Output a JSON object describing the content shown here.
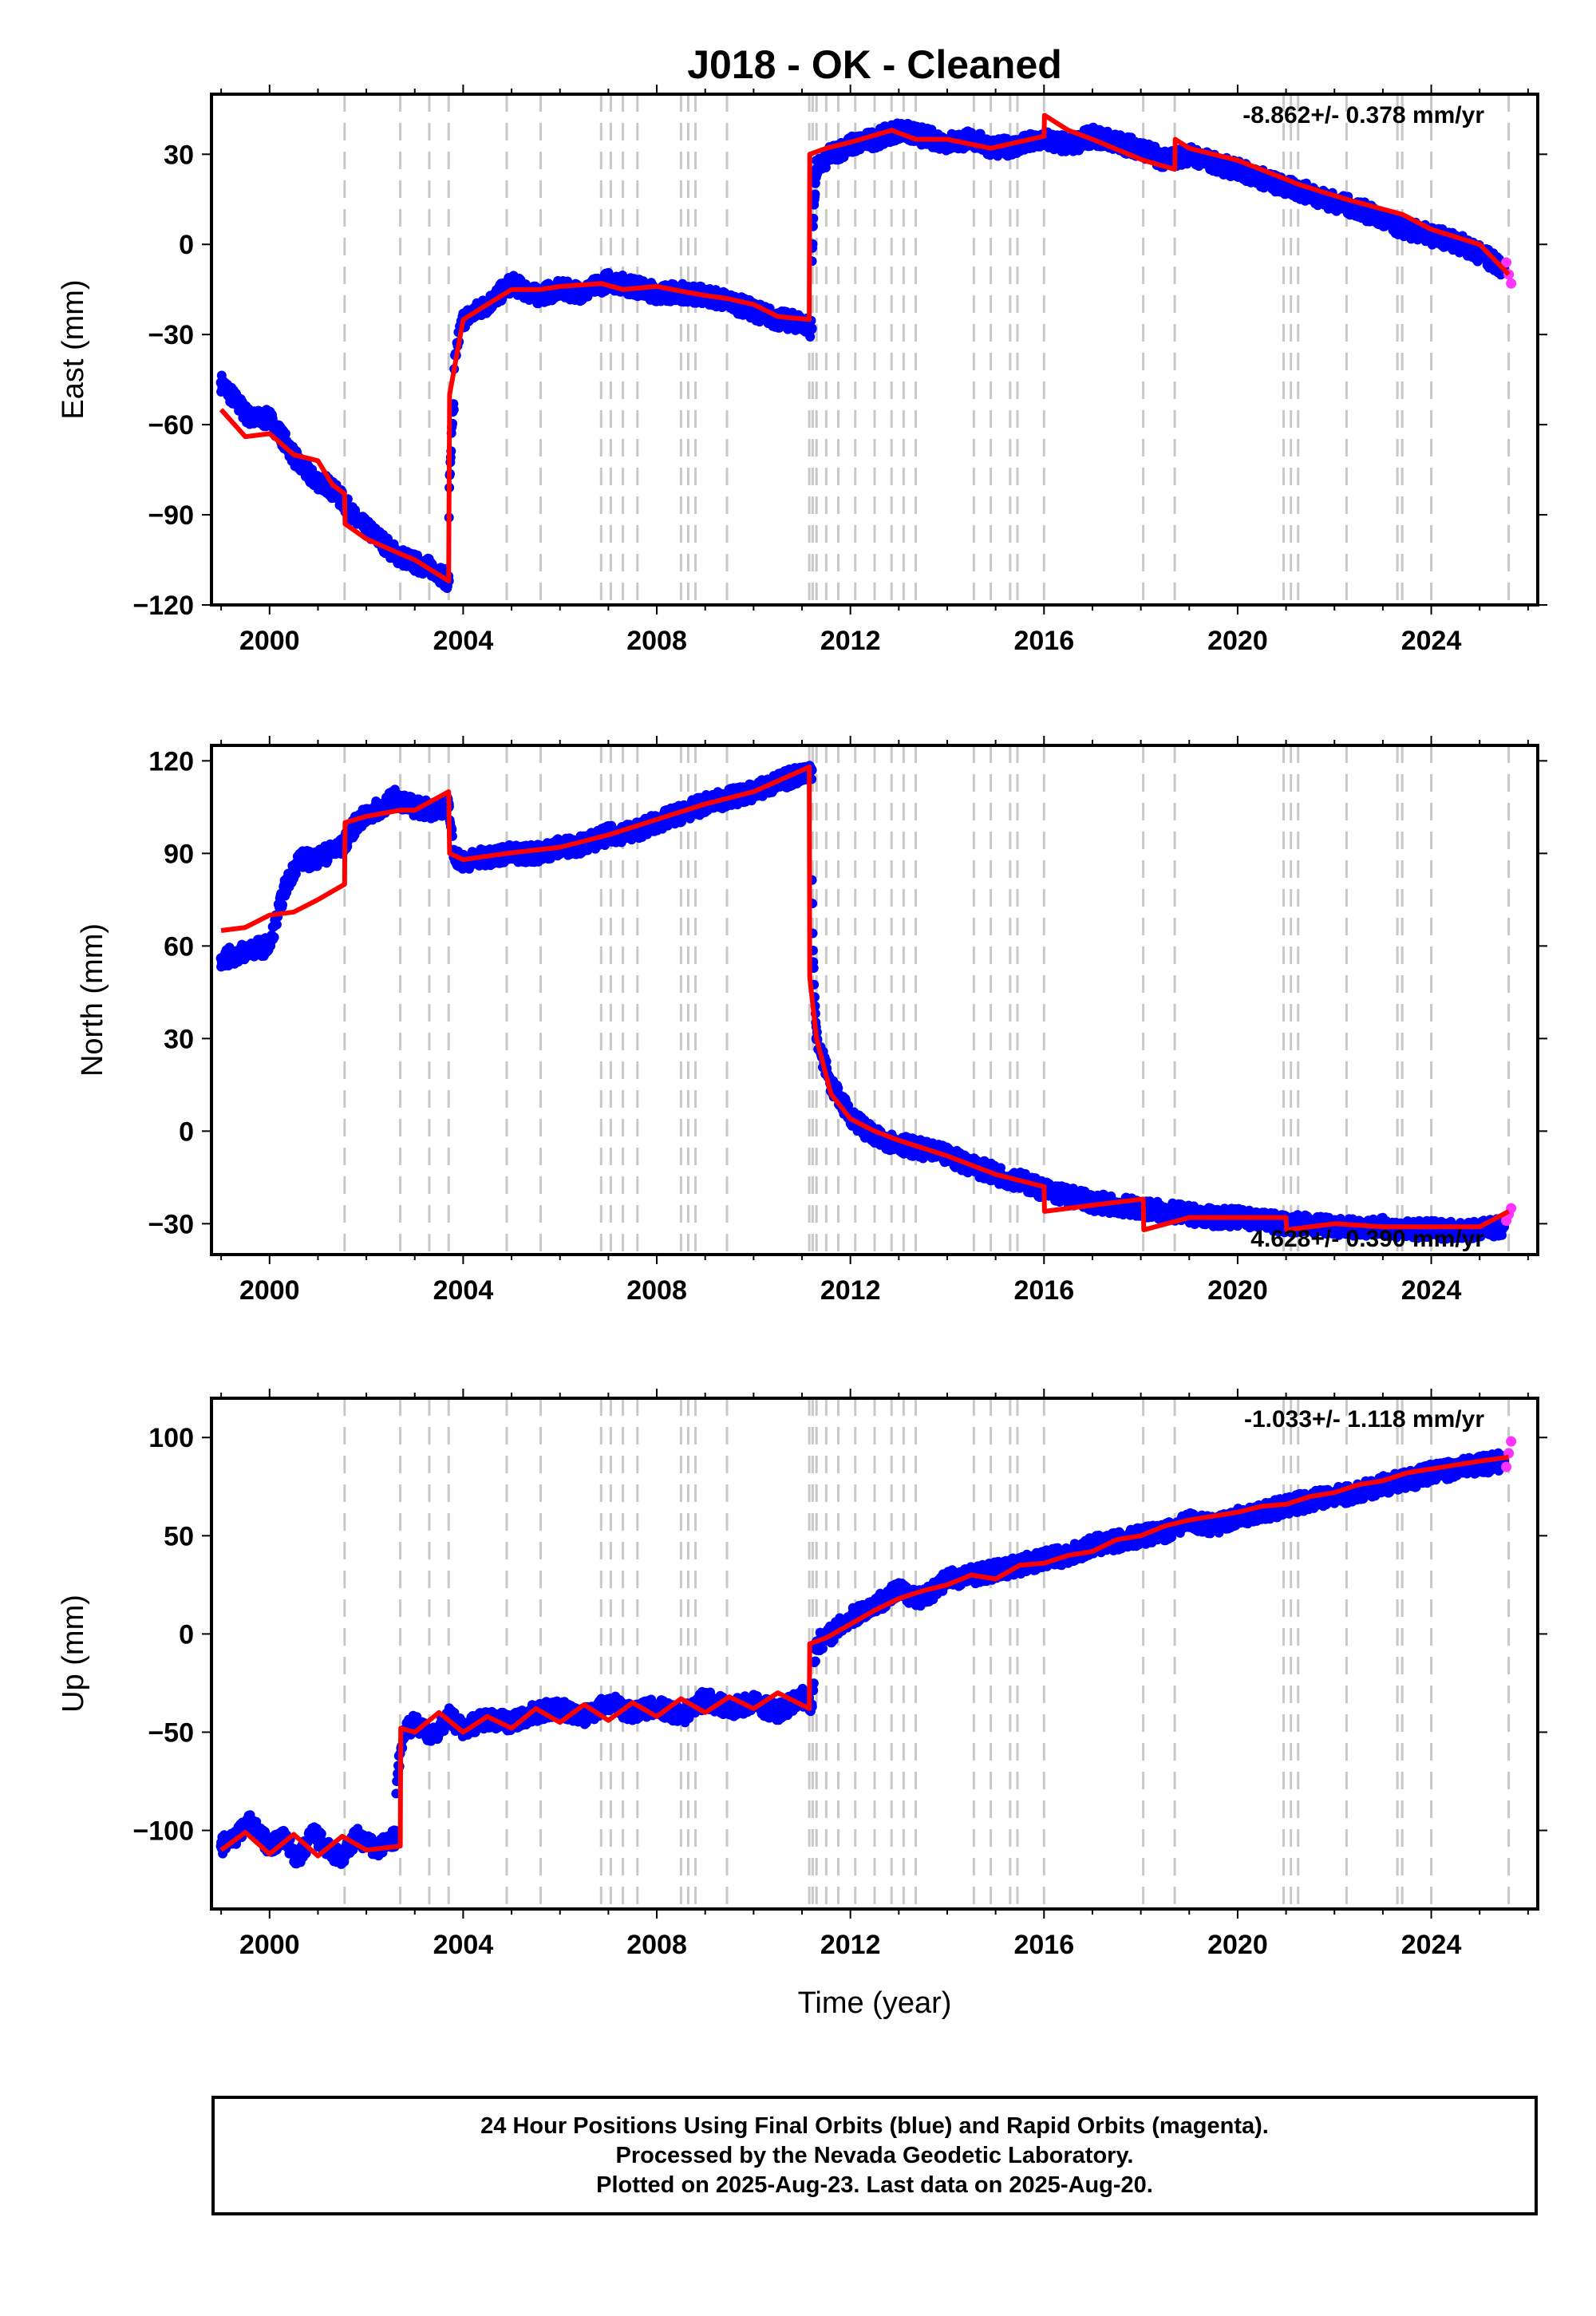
{
  "figure": {
    "title": "J018  - OK - Cleaned"
  },
  "colors": {
    "final_orbits": "#0000ff",
    "rapid_orbits": "#ff33ff",
    "model_fit": "#ff0000",
    "event_lines": "#c8c8c8",
    "frame": "#000000"
  },
  "x_axis": {
    "label": "Time (year)",
    "range": [
      1998.8,
      2026.2
    ],
    "ticks": [
      "2000",
      "2004",
      "2008",
      "2012",
      "2016",
      "2020",
      "2024"
    ]
  },
  "event_lines": [
    2001.55,
    2002.7,
    2003.3,
    2003.7,
    2004.9,
    2005.6,
    2006.85,
    2007.05,
    2007.3,
    2007.6,
    2008.5,
    2008.65,
    2008.8,
    2009.45,
    2011.15,
    2011.22,
    2011.3,
    2011.5,
    2011.75,
    2012.1,
    2012.5,
    2012.85,
    2013.1,
    2013.35,
    2014.55,
    2014.9,
    2015.3,
    2015.45,
    2016.0,
    2018.05,
    2018.7,
    2020.95,
    2021.1,
    2021.25,
    2022.25,
    2023.3,
    2023.4,
    2024.0,
    2025.6
  ],
  "footer": {
    "line1": "24 Hour Positions Using Final Orbits (blue) and Rapid Orbits (magenta).",
    "line2": "Processed by the Nevada Geodetic Laboratory.",
    "line3": "Plotted on 2025-Aug-23. Last data on 2025-Aug-20."
  },
  "chart_data": [
    {
      "type": "scatter",
      "ylabel": "East (mm)",
      "ylim": [
        -120,
        50
      ],
      "yticks": [
        "30",
        "0",
        "−30",
        "−60",
        "−90",
        "−120"
      ],
      "rate_label": "-8.862+/- 0.378 mm/yr",
      "series": [
        {
          "name": "Final Orbits (blue)",
          "x": [
            1999.0,
            1999.3,
            1999.6,
            2000.0,
            2000.3,
            2000.6,
            2000.9,
            2001.2,
            2001.5,
            2001.8,
            2002.2,
            2002.6,
            2003.0,
            2003.4,
            2003.7,
            2003.8,
            2004.0,
            2004.5,
            2005.0,
            2005.5,
            2006.0,
            2006.5,
            2007.0,
            2007.5,
            2008.0,
            2008.5,
            2009.0,
            2009.5,
            2010.0,
            2010.5,
            2011.0,
            2011.2,
            2011.3,
            2011.6,
            2012.0,
            2012.5,
            2013.0,
            2013.5,
            2014.0,
            2014.5,
            2015.0,
            2015.5,
            2016.0,
            2016.5,
            2017.0,
            2017.5,
            2018.0,
            2018.5,
            2019.0,
            2019.5,
            2020.0,
            2020.5,
            2021.0,
            2021.5,
            2022.0,
            2022.5,
            2023.0,
            2023.5,
            2024.0,
            2024.5,
            2025.0,
            2025.5
          ],
          "y": [
            -46,
            -52,
            -58,
            -58,
            -65,
            -73,
            -78,
            -80,
            -85,
            -92,
            -97,
            -103,
            -106,
            -108,
            -112,
            -55,
            -25,
            -20,
            -13,
            -17,
            -15,
            -16,
            -12,
            -14,
            -16,
            -16,
            -17,
            -19,
            -22,
            -25,
            -26,
            -28,
            25,
            30,
            33,
            35,
            38,
            36,
            34,
            35,
            32,
            33,
            35,
            33,
            36,
            34,
            32,
            28,
            30,
            27,
            25,
            22,
            19,
            17,
            14,
            12,
            8,
            5,
            3,
            1,
            -3,
            -8
          ]
        },
        {
          "name": "Rapid Orbits (magenta)",
          "x": [
            2025.55,
            2025.6,
            2025.65
          ],
          "y": [
            -6,
            -10,
            -13
          ]
        },
        {
          "name": "Model fit (red)",
          "x": [
            1999.0,
            1999.5,
            2000.0,
            2000.5,
            2001.0,
            2001.3,
            2001.55,
            2001.56,
            2002.0,
            2002.7,
            2003.0,
            2003.7,
            2003.72,
            2004.0,
            2004.5,
            2005.0,
            2005.6,
            2006.0,
            2006.85,
            2007.3,
            2008.0,
            2008.65,
            2009.0,
            2009.45,
            2010.0,
            2010.5,
            2011.15,
            2011.16,
            2011.5,
            2012.0,
            2012.85,
            2013.35,
            2014.0,
            2014.9,
            2015.45,
            2016.0,
            2016.01,
            2016.5,
            2017.0,
            2018.05,
            2018.7,
            2018.71,
            2019.0,
            2020.0,
            2020.95,
            2021.25,
            2022.25,
            2023.4,
            2024.0,
            2025.0,
            2025.6
          ],
          "y": [
            -55,
            -64,
            -63,
            -70,
            -72,
            -80,
            -83,
            -93,
            -98,
            -103,
            -105,
            -112,
            -50,
            -25,
            -20,
            -15,
            -15,
            -14,
            -13,
            -15,
            -14,
            -16,
            -17,
            -18,
            -20,
            -24,
            -25,
            30,
            32,
            34,
            38,
            35,
            35,
            32,
            34,
            36,
            43,
            38,
            35,
            28,
            25,
            35,
            32,
            28,
            22,
            20,
            15,
            10,
            5,
            0,
            -10
          ]
        }
      ]
    },
    {
      "type": "scatter",
      "ylabel": "North (mm)",
      "ylim": [
        -40,
        125
      ],
      "yticks": [
        "120",
        "90",
        "60",
        "30",
        "0",
        "−30"
      ],
      "rate_label": "4.628+/- 0.390 mm/yr",
      "series": [
        {
          "name": "Final Orbits (blue)",
          "x": [
            1999.0,
            1999.3,
            1999.6,
            2000.0,
            2000.3,
            2000.6,
            2000.9,
            2001.2,
            2001.5,
            2001.8,
            2002.2,
            2002.6,
            2003.0,
            2003.4,
            2003.7,
            2003.8,
            2004.0,
            2004.5,
            2005.0,
            2005.5,
            2006.0,
            2006.5,
            2007.0,
            2007.5,
            2008.0,
            2008.5,
            2009.0,
            2009.5,
            2010.0,
            2010.5,
            2011.0,
            2011.2,
            2011.3,
            2011.6,
            2012.0,
            2012.5,
            2013.0,
            2013.5,
            2014.0,
            2014.5,
            2015.0,
            2015.5,
            2016.0,
            2016.5,
            2017.0,
            2017.5,
            2018.0,
            2018.5,
            2019.0,
            2019.5,
            2020.0,
            2020.5,
            2021.0,
            2021.5,
            2022.0,
            2022.5,
            2023.0,
            2023.5,
            2024.0,
            2024.5,
            2025.0,
            2025.5
          ],
          "y": [
            56,
            57,
            59,
            60,
            78,
            88,
            88,
            90,
            92,
            100,
            104,
            108,
            105,
            104,
            106,
            90,
            87,
            89,
            90,
            90,
            92,
            93,
            96,
            97,
            100,
            103,
            106,
            108,
            110,
            113,
            116,
            117,
            30,
            15,
            5,
            -2,
            -4,
            -6,
            -8,
            -11,
            -14,
            -16,
            -19,
            -21,
            -23,
            -24,
            -25,
            -26,
            -27,
            -28,
            -28,
            -29,
            -30,
            -30,
            -31,
            -31,
            -31,
            -32,
            -32,
            -32,
            -32,
            -31
          ]
        },
        {
          "name": "Rapid Orbits (magenta)",
          "x": [
            2025.55,
            2025.6,
            2025.65
          ],
          "y": [
            -29,
            -27,
            -25
          ]
        },
        {
          "name": "Model fit (red)",
          "x": [
            1999.0,
            1999.5,
            2000.0,
            2000.5,
            2001.0,
            2001.55,
            2001.56,
            2002.0,
            2002.7,
            2003.0,
            2003.7,
            2003.72,
            2004.0,
            2004.9,
            2006.0,
            2007.0,
            2008.0,
            2009.0,
            2010.0,
            2011.15,
            2011.16,
            2011.3,
            2011.6,
            2012.0,
            2012.5,
            2013.0,
            2014.0,
            2015.0,
            2016.0,
            2016.01,
            2017.0,
            2018.05,
            2018.06,
            2019.0,
            2020.0,
            2021.0,
            2021.01,
            2022.0,
            2023.0,
            2024.0,
            2025.0,
            2025.6
          ],
          "y": [
            65,
            66,
            70,
            71,
            75,
            80,
            100,
            102,
            104,
            104,
            110,
            90,
            88,
            90,
            92,
            96,
            101,
            106,
            110,
            118,
            50,
            30,
            12,
            4,
            0,
            -3,
            -8,
            -14,
            -18,
            -26,
            -24,
            -22,
            -32,
            -28,
            -28,
            -28,
            -32,
            -30,
            -31,
            -31,
            -31,
            -26
          ]
        }
      ]
    },
    {
      "type": "scatter",
      "ylabel": "Up (mm)",
      "ylim": [
        -140,
        120
      ],
      "yticks": [
        "100",
        "50",
        "0",
        "−50",
        "−100"
      ],
      "rate_label": "-1.033+/- 1.118 mm/yr",
      "series": [
        {
          "name": "Final Orbits (blue)",
          "x": [
            1999.0,
            1999.3,
            1999.6,
            2000.0,
            2000.3,
            2000.6,
            2000.9,
            2001.2,
            2001.5,
            2001.8,
            2002.2,
            2002.6,
            2002.8,
            2003.0,
            2003.4,
            2003.7,
            2004.0,
            2004.5,
            2005.0,
            2005.5,
            2006.0,
            2006.5,
            2007.0,
            2007.5,
            2008.0,
            2008.5,
            2009.0,
            2009.5,
            2010.0,
            2010.5,
            2011.0,
            2011.2,
            2011.3,
            2011.6,
            2012.0,
            2012.5,
            2013.0,
            2013.5,
            2014.0,
            2014.5,
            2015.0,
            2015.5,
            2016.0,
            2016.5,
            2017.0,
            2017.5,
            2018.0,
            2018.5,
            2019.0,
            2019.5,
            2020.0,
            2020.5,
            2021.0,
            2021.5,
            2022.0,
            2022.5,
            2023.0,
            2023.5,
            2024.0,
            2024.5,
            2025.0,
            2025.5
          ],
          "y": [
            -108,
            -103,
            -96,
            -108,
            -104,
            -115,
            -101,
            -110,
            -114,
            -103,
            -110,
            -104,
            -50,
            -45,
            -52,
            -42,
            -48,
            -43,
            -45,
            -40,
            -38,
            -42,
            -35,
            -40,
            -37,
            -42,
            -33,
            -38,
            -35,
            -40,
            -32,
            -36,
            -5,
            0,
            8,
            15,
            22,
            18,
            28,
            30,
            32,
            35,
            38,
            40,
            45,
            47,
            50,
            52,
            58,
            55,
            60,
            62,
            65,
            68,
            70,
            72,
            76,
            78,
            82,
            84,
            86,
            88
          ]
        },
        {
          "name": "Rapid Orbits (magenta)",
          "x": [
            2025.55,
            2025.6,
            2025.65
          ],
          "y": [
            85,
            92,
            98
          ]
        },
        {
          "name": "Model fit (red)",
          "x": [
            1999.0,
            1999.5,
            2000.0,
            2000.5,
            2001.0,
            2001.5,
            2002.0,
            2002.7,
            2002.71,
            2003.0,
            2003.5,
            2004.0,
            2004.5,
            2005.0,
            2005.5,
            2006.0,
            2006.5,
            2007.0,
            2007.5,
            2008.0,
            2008.5,
            2009.0,
            2009.5,
            2010.0,
            2010.5,
            2011.15,
            2011.16,
            2011.5,
            2012.0,
            2012.5,
            2013.0,
            2013.5,
            2014.0,
            2014.5,
            2015.0,
            2015.5,
            2016.0,
            2016.5,
            2017.0,
            2017.5,
            2018.0,
            2018.5,
            2019.0,
            2019.5,
            2020.0,
            2020.5,
            2021.0,
            2021.5,
            2022.0,
            2022.5,
            2023.0,
            2023.5,
            2024.0,
            2024.5,
            2025.0,
            2025.6
          ],
          "y": [
            -110,
            -101,
            -112,
            -102,
            -113,
            -103,
            -110,
            -108,
            -48,
            -50,
            -40,
            -50,
            -42,
            -48,
            -38,
            -45,
            -36,
            -44,
            -35,
            -42,
            -33,
            -40,
            -32,
            -38,
            -30,
            -38,
            -5,
            -2,
            5,
            12,
            18,
            22,
            25,
            30,
            28,
            35,
            36,
            40,
            42,
            48,
            50,
            55,
            58,
            60,
            62,
            65,
            66,
            70,
            72,
            76,
            78,
            82,
            84,
            86,
            88,
            90
          ]
        }
      ]
    }
  ]
}
